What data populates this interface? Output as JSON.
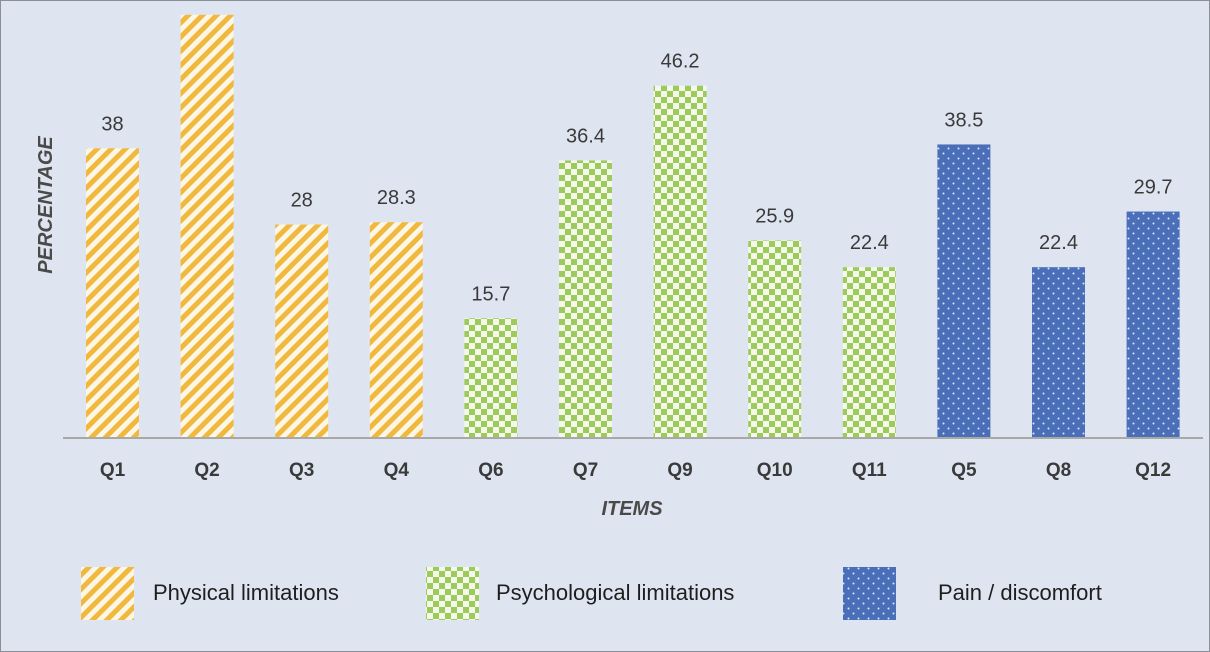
{
  "chart_data": {
    "type": "bar",
    "title": "",
    "xlabel": "ITEMS",
    "ylabel": "PERCENTAGE",
    "ylim": [
      0,
      56
    ],
    "grid": false,
    "legend_position": "bottom",
    "categories": [
      "Q1",
      "Q2",
      "Q3",
      "Q4",
      "Q6",
      "Q7",
      "Q9",
      "Q10",
      "Q11",
      "Q5",
      "Q8",
      "Q12"
    ],
    "values": [
      38,
      55.5,
      28,
      28.3,
      15.7,
      36.4,
      46.2,
      25.9,
      22.4,
      38.5,
      22.4,
      29.7
    ],
    "value_labels": [
      "38",
      "",
      "28",
      "28.3",
      "15.7",
      "36.4",
      "46.2",
      "25.9",
      "22.4",
      "38.5",
      "22.4",
      "29.7"
    ],
    "groups": [
      0,
      0,
      0,
      0,
      1,
      1,
      1,
      1,
      1,
      2,
      2,
      2
    ],
    "series": [
      {
        "name": "Physical limitations",
        "pattern": "diagonal-stripes",
        "color": "#f0b93e"
      },
      {
        "name": "Psychological limitations",
        "pattern": "checkerboard",
        "color": "#9ccb5a"
      },
      {
        "name": "Pain / discomfort",
        "pattern": "dots",
        "color": "#4a6fb8"
      }
    ]
  }
}
